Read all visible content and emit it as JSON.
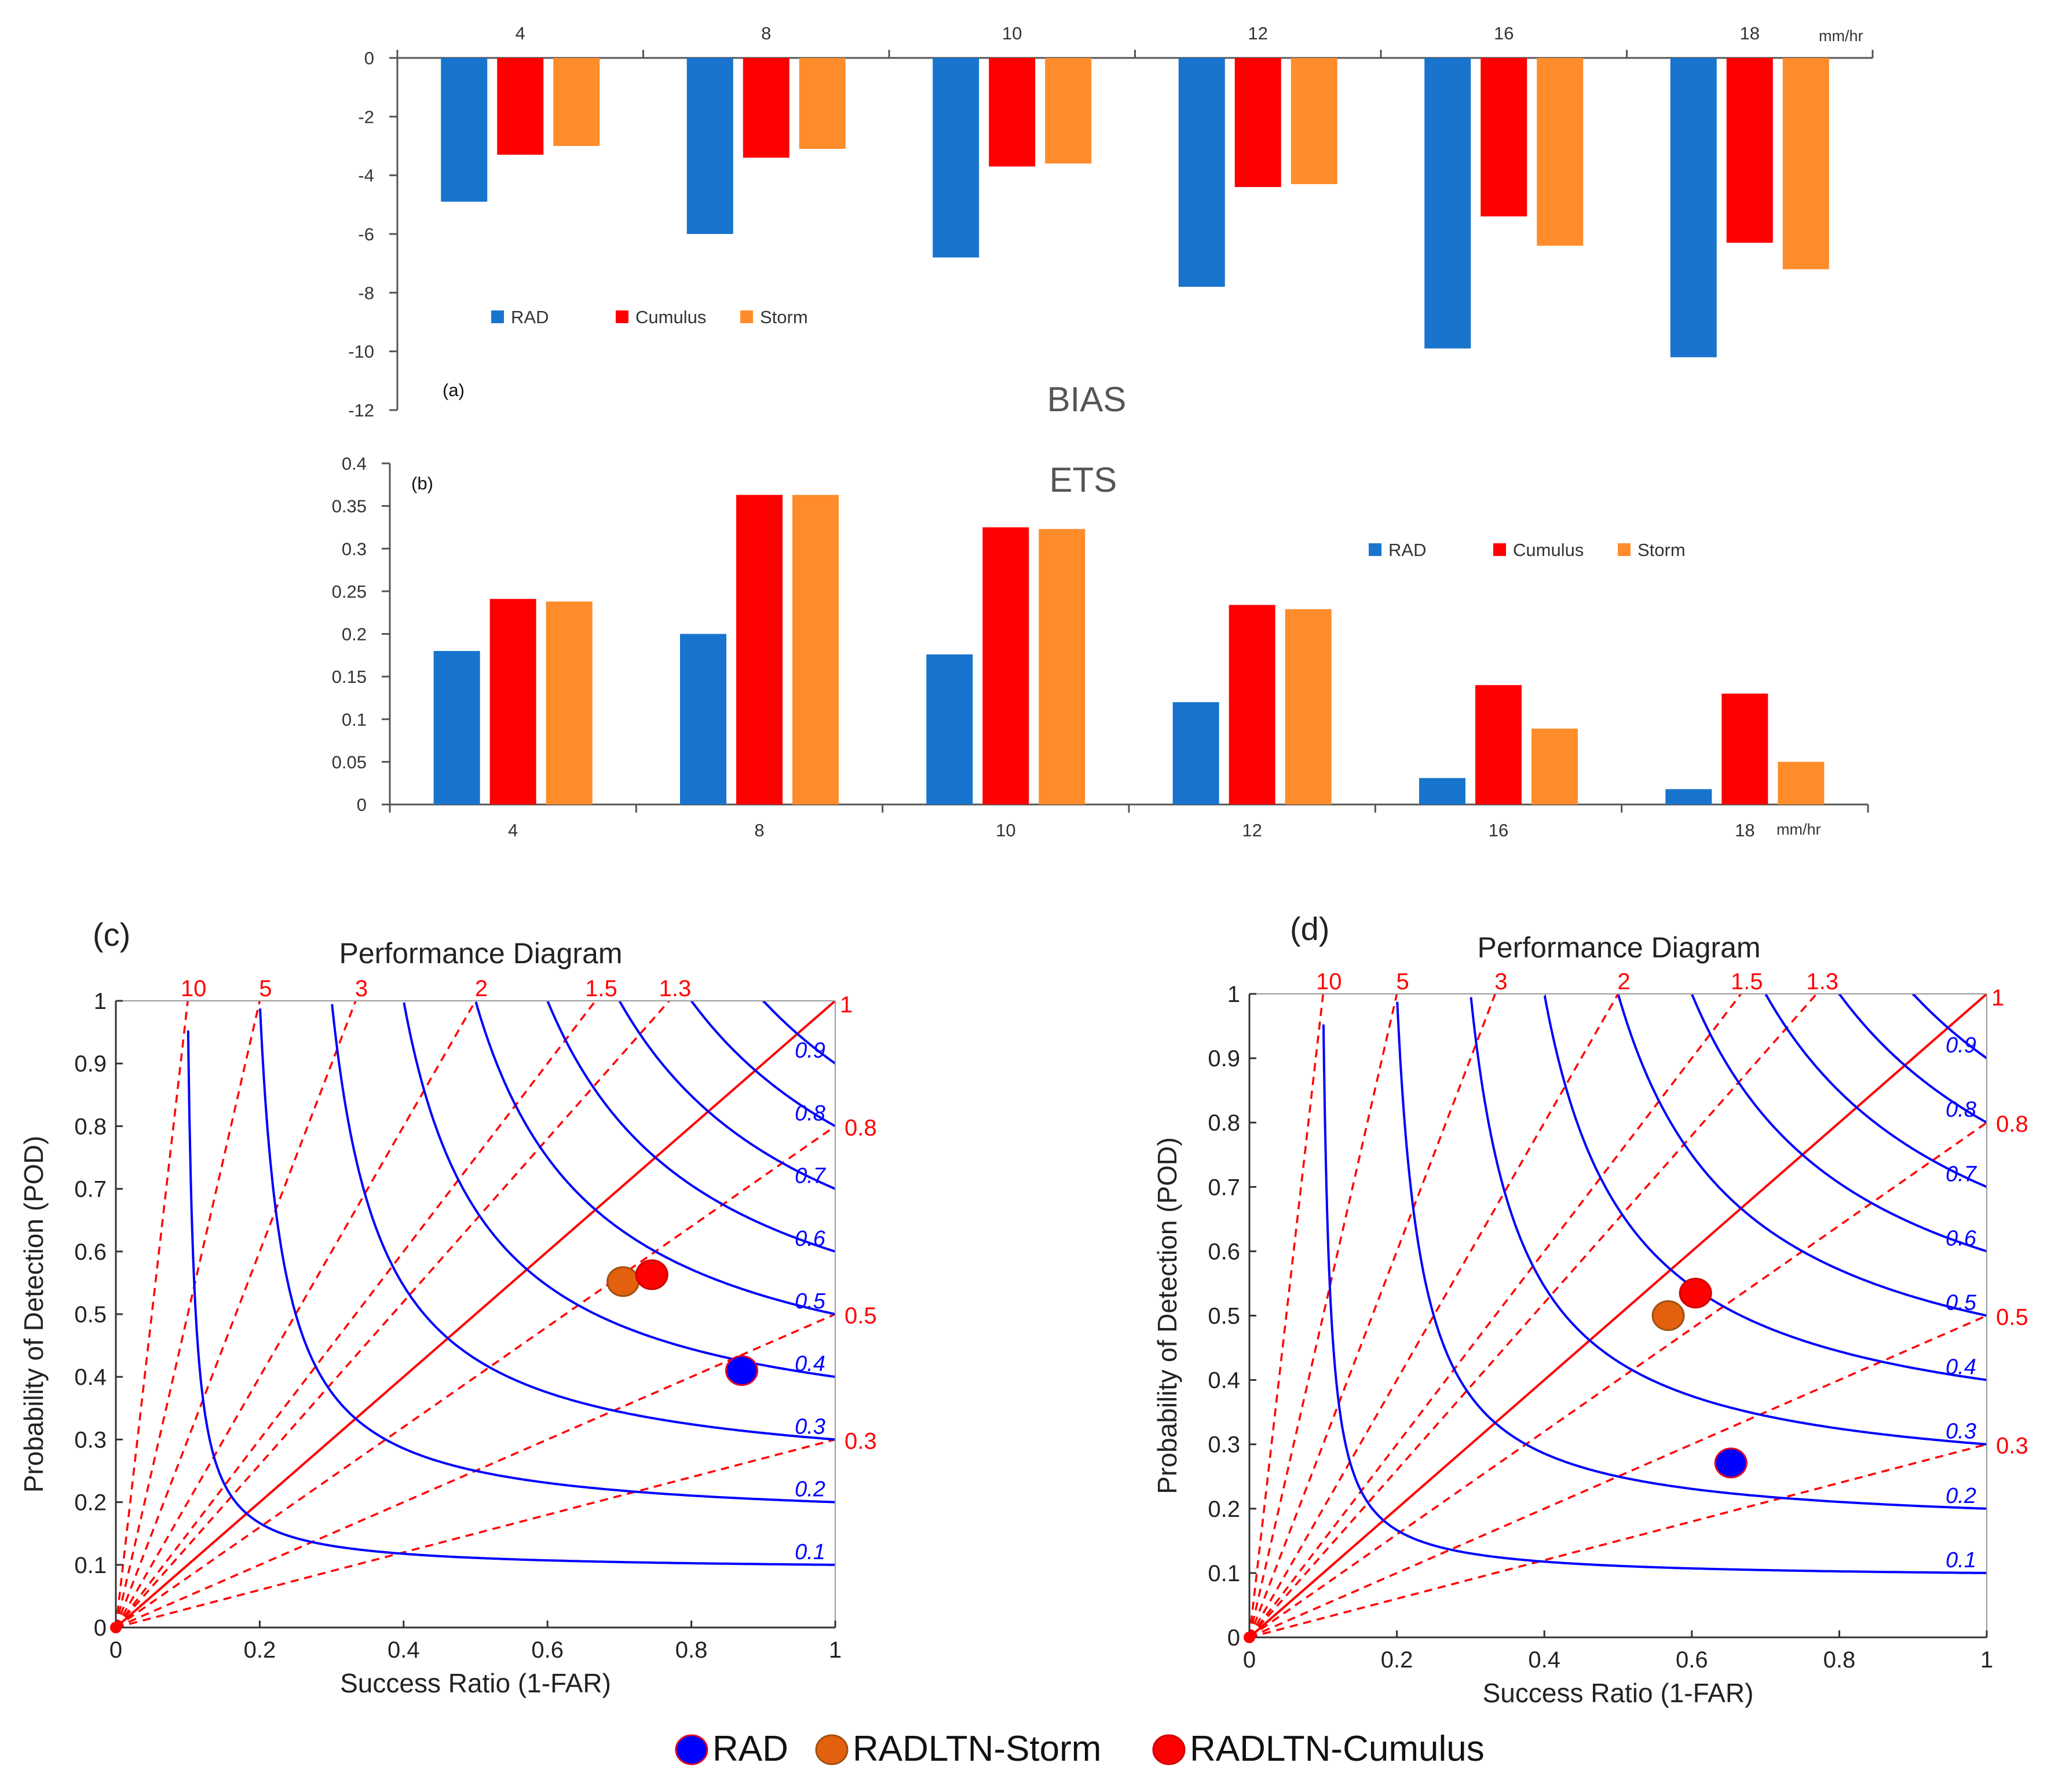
{
  "colors": {
    "rad": "#1874CD",
    "cumulus": "#FF0000",
    "storm": "#FF8C2A",
    "csi_line": "#0000FF",
    "bias_line": "#FF0000",
    "axis": "#555555",
    "marker_storm": "#E2600E"
  },
  "chart_data": [
    {
      "id": "panel-a",
      "type": "bar",
      "panel_label": "(a)",
      "title": "BIAS",
      "unit_label": "mm/hr",
      "categories": [
        "4",
        "8",
        "10",
        "12",
        "16",
        "18"
      ],
      "series": [
        {
          "name": "RAD",
          "values": [
            -4.9,
            -6.0,
            -6.8,
            -7.8,
            -9.9,
            -10.2
          ]
        },
        {
          "name": "Cumulus",
          "values": [
            -3.3,
            -3.4,
            -3.7,
            -4.4,
            -5.4,
            -6.3
          ]
        },
        {
          "name": "Storm",
          "values": [
            -3.0,
            -3.1,
            -3.6,
            -4.3,
            -6.4,
            -7.2
          ]
        }
      ],
      "ylim": [
        -12,
        0
      ],
      "yticks": [
        "0",
        "-2",
        "-4",
        "-6",
        "-8",
        "-10",
        "-12"
      ],
      "xaxis_position": "top",
      "legend_position": "lower-left"
    },
    {
      "id": "panel-b",
      "type": "bar",
      "panel_label": "(b)",
      "title": "ETS",
      "unit_label": "mm/hr",
      "categories": [
        "4",
        "8",
        "10",
        "12",
        "16",
        "18"
      ],
      "series": [
        {
          "name": "RAD",
          "values": [
            0.18,
            0.2,
            0.176,
            0.12,
            0.031,
            0.018
          ]
        },
        {
          "name": "Cumulus",
          "values": [
            0.241,
            0.363,
            0.325,
            0.234,
            0.14,
            0.13
          ]
        },
        {
          "name": "Storm",
          "values": [
            0.238,
            0.363,
            0.323,
            0.229,
            0.089,
            0.05
          ]
        }
      ],
      "ylim": [
        0,
        0.4
      ],
      "yticks": [
        "0",
        "0.05",
        "0.1",
        "0.15",
        "0.2",
        "0.25",
        "0.3",
        "0.35",
        "0.4"
      ],
      "xaxis_position": "bottom",
      "legend_position": "top-right"
    },
    {
      "id": "panel-c",
      "type": "scatter",
      "panel_label": "(c)",
      "title": "Performance Diagram",
      "xlabel": "Success Ratio (1-FAR)",
      "ylabel": "Probability of Detection (POD)",
      "xlim": [
        0,
        1
      ],
      "ylim": [
        0,
        1
      ],
      "xticks": [
        "0",
        "0.2",
        "0.4",
        "0.6",
        "0.8",
        "1"
      ],
      "yticks": [
        "0",
        "0.1",
        "0.2",
        "0.3",
        "0.4",
        "0.5",
        "0.6",
        "0.7",
        "0.8",
        "0.9",
        "1"
      ],
      "csi_contours": [
        0.1,
        0.2,
        0.3,
        0.4,
        0.5,
        0.6,
        0.7,
        0.8,
        0.9
      ],
      "csi_labels": [
        "0.1",
        "0.2",
        "0.3",
        "0.4",
        "0.5",
        "0.6",
        "0.7",
        "0.8",
        "0.9"
      ],
      "bias_lines": [
        10,
        5,
        3,
        2,
        1.5,
        1.3,
        1,
        0.8,
        0.5,
        0.3
      ],
      "bias_labels": [
        "10",
        "5",
        "3",
        "2",
        "1.5",
        "1.3",
        "1",
        "0.8",
        "0.5",
        "0.3"
      ],
      "points": [
        {
          "name": "RAD",
          "x": 0.87,
          "y": 0.41
        },
        {
          "name": "RADLTN-Storm",
          "x": 0.705,
          "y": 0.552
        },
        {
          "name": "RADLTN-Cumulus",
          "x": 0.745,
          "y": 0.563
        }
      ]
    },
    {
      "id": "panel-d",
      "type": "scatter",
      "panel_label": "(d)",
      "title": "Performance Diagram",
      "xlabel": "Success Ratio (1-FAR)",
      "ylabel": "Probability of Detection (POD)",
      "xlim": [
        0,
        1
      ],
      "ylim": [
        0,
        1
      ],
      "xticks": [
        "0",
        "0.2",
        "0.4",
        "0.6",
        "0.8",
        "1"
      ],
      "yticks": [
        "0",
        "0.1",
        "0.2",
        "0.3",
        "0.4",
        "0.5",
        "0.6",
        "0.7",
        "0.8",
        "0.9",
        "1"
      ],
      "csi_contours": [
        0.1,
        0.2,
        0.3,
        0.4,
        0.5,
        0.6,
        0.7,
        0.8,
        0.9
      ],
      "csi_labels": [
        "0.1",
        "0.2",
        "0.3",
        "0.4",
        "0.5",
        "0.6",
        "0.7",
        "0.8",
        "0.9"
      ],
      "bias_lines": [
        10,
        5,
        3,
        2,
        1.5,
        1.3,
        1,
        0.8,
        0.5,
        0.3
      ],
      "bias_labels": [
        "10",
        "5",
        "3",
        "2",
        "1.5",
        "1.3",
        "1",
        "0.8",
        "0.5",
        "0.3"
      ],
      "points": [
        {
          "name": "RAD",
          "x": 0.653,
          "y": 0.271
        },
        {
          "name": "RADLTN-Storm",
          "x": 0.568,
          "y": 0.5
        },
        {
          "name": "RADLTN-Cumulus",
          "x": 0.605,
          "y": 0.535
        }
      ]
    }
  ],
  "bottom_legend": [
    "RAD",
    "RADLTN-Storm",
    "RADLTN-Cumulus"
  ]
}
